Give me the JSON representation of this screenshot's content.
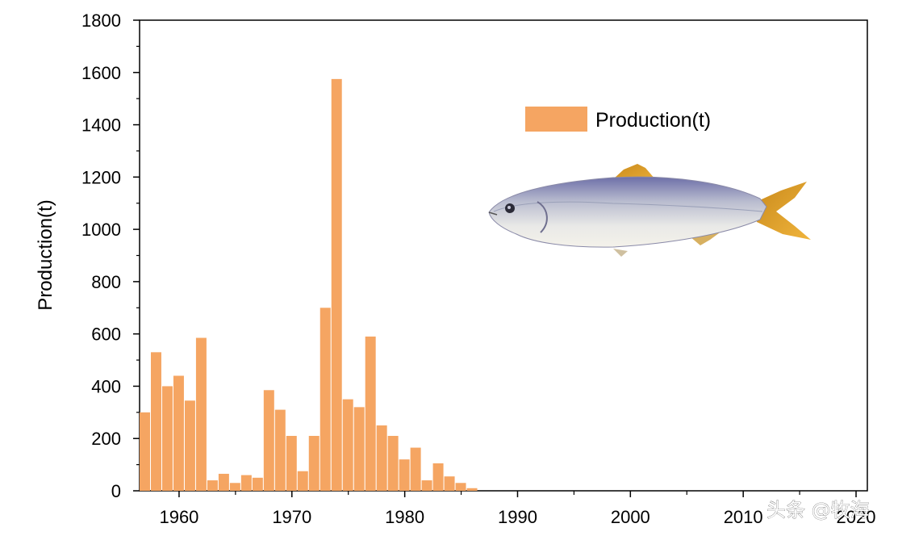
{
  "chart_data": {
    "type": "bar",
    "title": "",
    "xlabel": "",
    "ylabel": "Production(t)",
    "xlim": [
      1956.5,
      2021
    ],
    "ylim": [
      0,
      1800
    ],
    "x_ticks": [
      1960,
      1970,
      1980,
      1990,
      2000,
      2010,
      2020
    ],
    "y_ticks": [
      0,
      200,
      400,
      600,
      800,
      1000,
      1200,
      1400,
      1600,
      1800
    ],
    "grid": false,
    "legend_position": "top-right",
    "bar_color": "#F5A562",
    "series": [
      {
        "name": "Production(t)",
        "x": [
          1957,
          1958,
          1959,
          1960,
          1961,
          1962,
          1963,
          1964,
          1965,
          1966,
          1967,
          1968,
          1969,
          1970,
          1971,
          1972,
          1973,
          1974,
          1975,
          1976,
          1977,
          1978,
          1979,
          1980,
          1981,
          1982,
          1983,
          1984,
          1985,
          1986
        ],
        "values": [
          300,
          530,
          400,
          440,
          345,
          585,
          40,
          65,
          30,
          60,
          50,
          385,
          310,
          210,
          75,
          210,
          700,
          1575,
          350,
          320,
          590,
          250,
          210,
          120,
          165,
          40,
          105,
          55,
          30,
          10
        ]
      }
    ]
  },
  "legend": {
    "label": "Production(t)"
  },
  "watermark": {
    "text": "头条 @牧海"
  },
  "illustration": {
    "subject": "fish-illustration"
  }
}
